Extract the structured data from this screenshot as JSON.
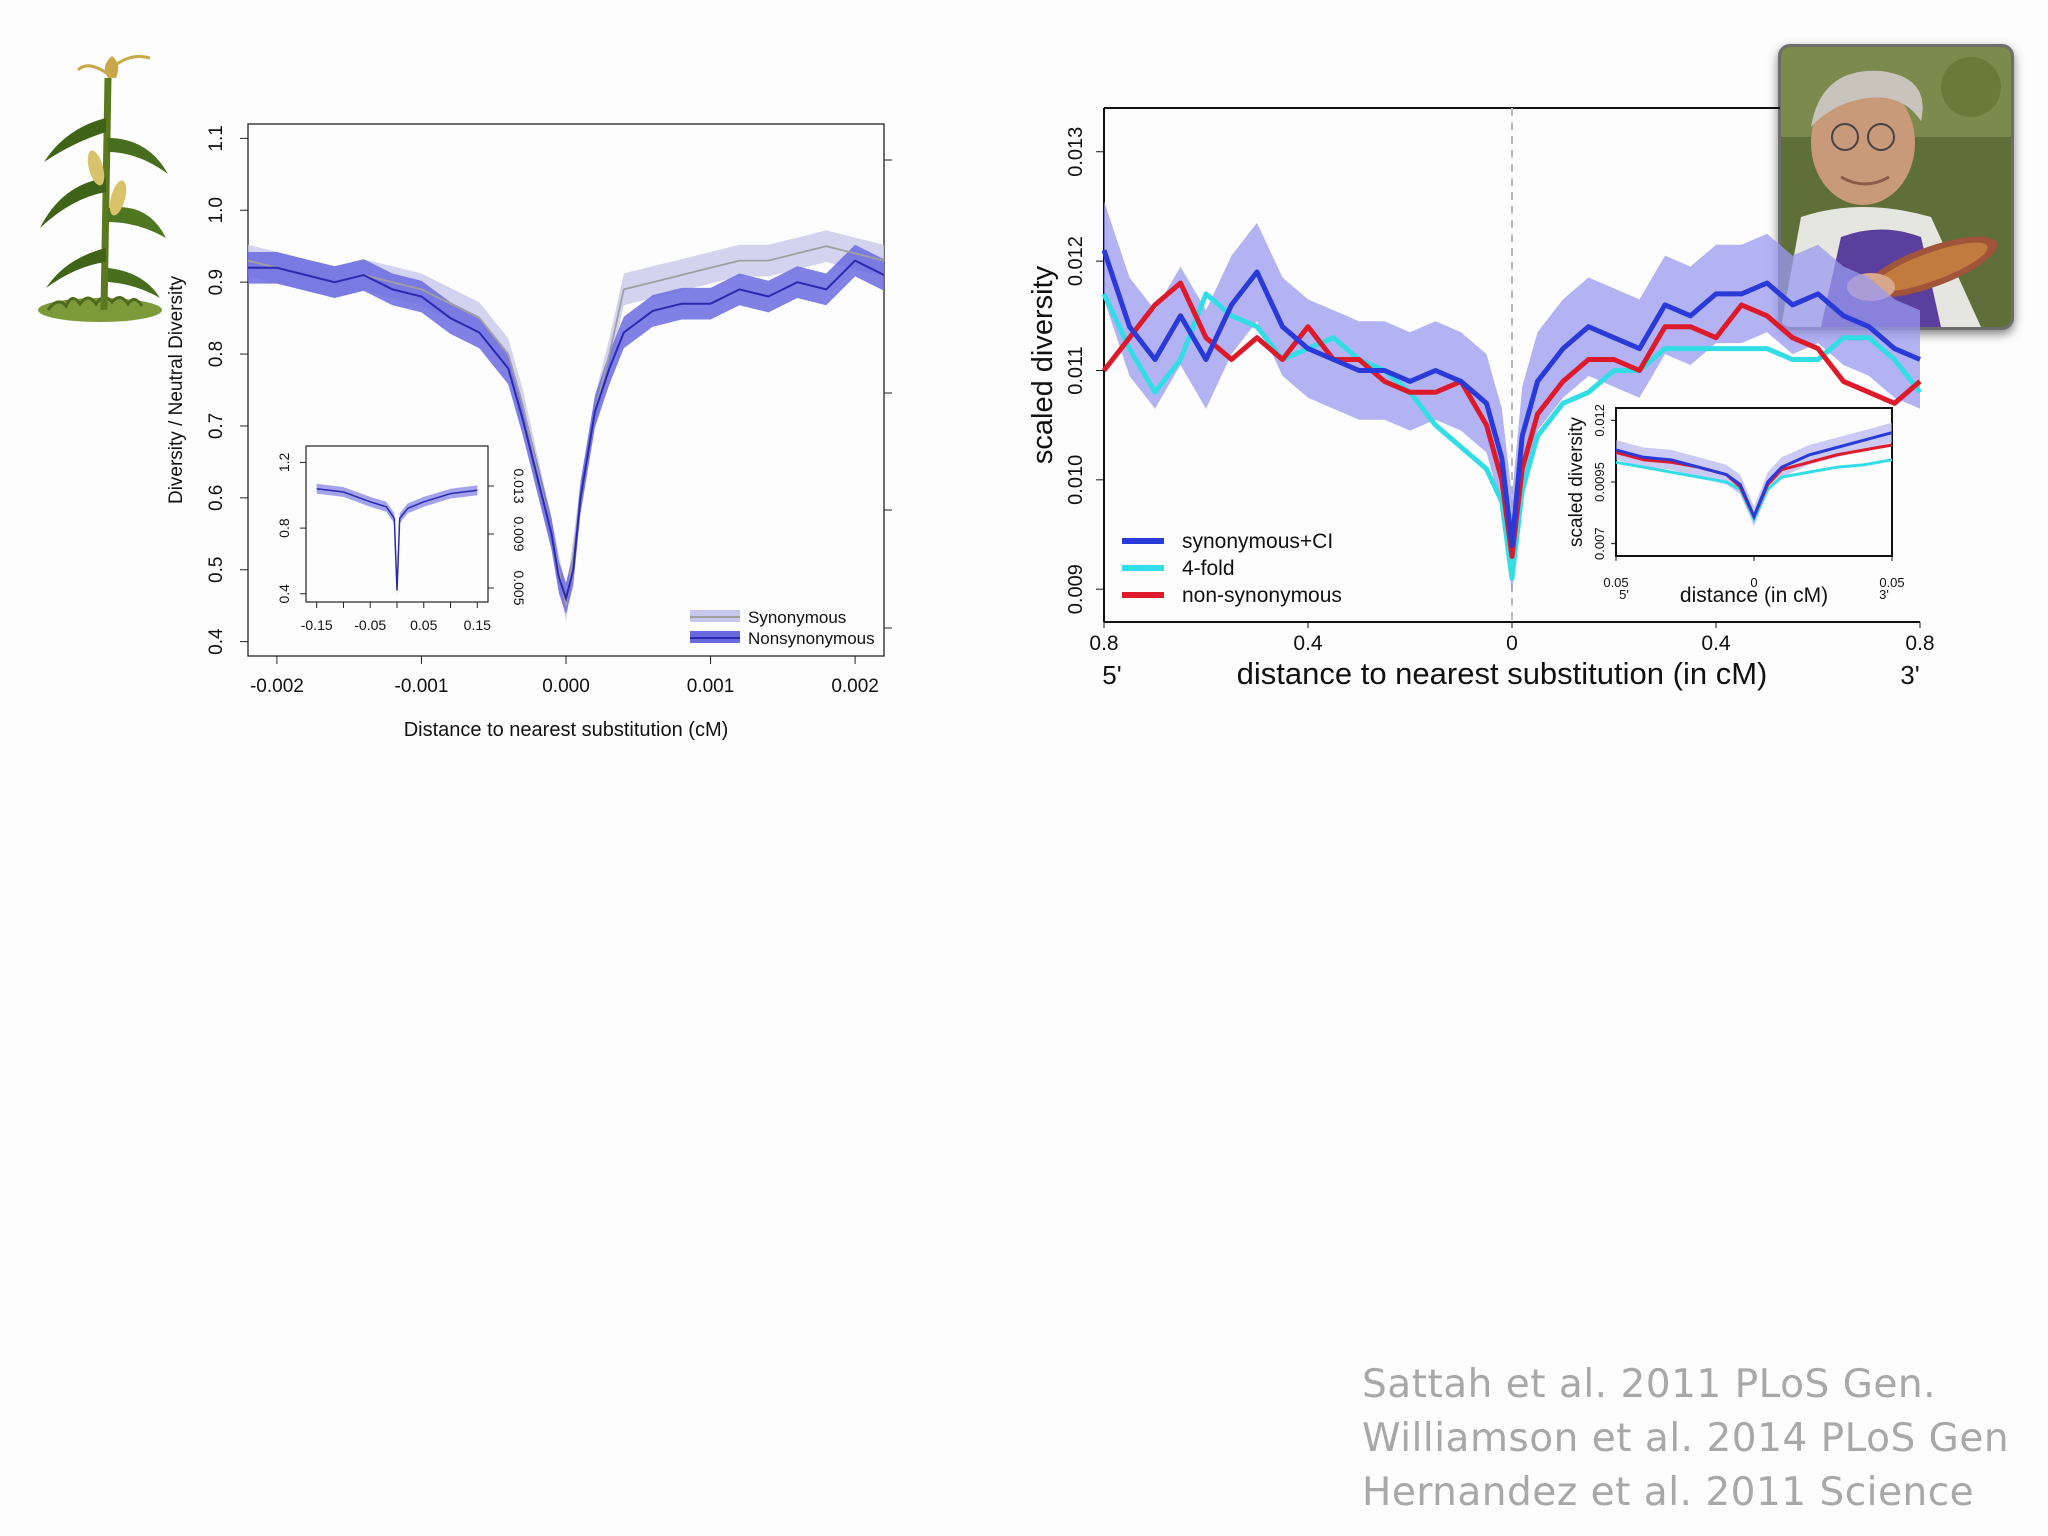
{
  "citations": [
    "Sattah et al. 2011 PLoS Gen.",
    "Williamson et al. 2014 PLoS Gen",
    "Hernandez et al. 2011 Science"
  ],
  "images": {
    "plant": "corn-plant-illustration",
    "photo": "portrait-photo-with-corn"
  },
  "chart_data": [
    {
      "type": "line",
      "xlabel": "Distance to nearest substitution (cM)",
      "ylabel": "Diversity / Neutral Diversity",
      "xlim": [
        -0.0022,
        0.0022
      ],
      "ylim": [
        0.38,
        1.12
      ],
      "x_ticks": [
        "-0.002",
        "-0.001",
        "0.000",
        "0.001",
        "0.002"
      ],
      "y_ticks": [
        "0.4",
        "0.5",
        "0.6",
        "0.7",
        "0.8",
        "0.9",
        "1.0",
        "1.1"
      ],
      "x": [
        -0.0022,
        -0.002,
        -0.0018,
        -0.0016,
        -0.0014,
        -0.0012,
        -0.001,
        -0.0008,
        -0.0006,
        -0.0004,
        -0.0003,
        -0.0002,
        -0.0001,
        -5e-05,
        0,
        5e-05,
        0.0001,
        0.0002,
        0.0003,
        0.0004,
        0.0006,
        0.0008,
        0.001,
        0.0012,
        0.0014,
        0.0016,
        0.0018,
        0.002,
        0.0022
      ],
      "series": [
        {
          "name": "Synonymous",
          "color": "#a0a0a0",
          "band": "#c8c8ec",
          "values": [
            0.93,
            0.92,
            0.91,
            0.9,
            0.91,
            0.9,
            0.89,
            0.87,
            0.85,
            0.8,
            0.73,
            0.64,
            0.55,
            0.5,
            0.45,
            0.52,
            0.6,
            0.72,
            0.8,
            0.89,
            0.9,
            0.91,
            0.92,
            0.93,
            0.93,
            0.94,
            0.95,
            0.94,
            0.93
          ]
        },
        {
          "name": "Nonsynonymous",
          "color": "#2a2ab0",
          "band": "#6a6ae0",
          "values": [
            0.92,
            0.92,
            0.91,
            0.9,
            0.91,
            0.89,
            0.88,
            0.85,
            0.83,
            0.78,
            0.71,
            0.63,
            0.55,
            0.49,
            0.46,
            0.5,
            0.6,
            0.72,
            0.78,
            0.83,
            0.86,
            0.87,
            0.87,
            0.89,
            0.88,
            0.9,
            0.89,
            0.93,
            0.91
          ]
        }
      ],
      "legend": "bottom-right",
      "inset": {
        "x_ticks": [
          "-0.15",
          "-0.05",
          "0.05",
          "0.15"
        ],
        "y_ticks_left": [
          "0.4",
          "0.8",
          "1.2"
        ],
        "y_ticks_right": [
          "0.005",
          "0.009",
          "0.013"
        ],
        "x": [
          -0.15,
          -0.1,
          -0.05,
          -0.02,
          -0.005,
          0,
          0.005,
          0.02,
          0.05,
          0.1,
          0.15
        ],
        "values": [
          1.04,
          1.02,
          0.96,
          0.93,
          0.86,
          0.42,
          0.86,
          0.92,
          0.96,
          1.01,
          1.03
        ]
      }
    },
    {
      "type": "line",
      "xlabel": "distance to nearest substitution (in cM)",
      "ylabel": "scaled diversity",
      "xlim": [
        -0.8,
        0.8
      ],
      "ylim": [
        0.0087,
        0.0134
      ],
      "x_ticks": [
        "0.8",
        "0.4",
        "0",
        "0.4",
        "0.8"
      ],
      "x_end_labels": [
        "5'",
        "3'"
      ],
      "y_ticks": [
        "0.009",
        "0.010",
        "0.011",
        "0.012",
        "0.013"
      ],
      "x": [
        -0.8,
        -0.75,
        -0.7,
        -0.65,
        -0.6,
        -0.55,
        -0.5,
        -0.45,
        -0.4,
        -0.35,
        -0.3,
        -0.25,
        -0.2,
        -0.15,
        -0.1,
        -0.05,
        -0.02,
        0,
        0.02,
        0.05,
        0.1,
        0.15,
        0.2,
        0.25,
        0.3,
        0.35,
        0.4,
        0.45,
        0.5,
        0.55,
        0.6,
        0.65,
        0.7,
        0.75,
        0.8
      ],
      "series": [
        {
          "name": "synonymous+CI",
          "color": "#2a3ad8",
          "band": "#9a9af0",
          "values": [
            0.0121,
            0.0114,
            0.0111,
            0.0115,
            0.0111,
            0.0116,
            0.0119,
            0.0114,
            0.0112,
            0.0111,
            0.011,
            0.011,
            0.0109,
            0.011,
            0.0109,
            0.0107,
            0.0102,
            0.0094,
            0.0104,
            0.0109,
            0.0112,
            0.0114,
            0.0113,
            0.0112,
            0.0116,
            0.0115,
            0.0117,
            0.0117,
            0.0118,
            0.0116,
            0.0117,
            0.0115,
            0.0114,
            0.0112,
            0.0111
          ]
        },
        {
          "name": "4-fold",
          "color": "#33dde6",
          "values": [
            0.0117,
            0.0112,
            0.0108,
            0.0111,
            0.0117,
            0.0115,
            0.0114,
            0.0111,
            0.0112,
            0.0113,
            0.0111,
            0.011,
            0.0108,
            0.0105,
            0.0103,
            0.0101,
            0.0098,
            0.0091,
            0.0099,
            0.0104,
            0.0107,
            0.0108,
            0.011,
            0.011,
            0.0112,
            0.0112,
            0.0112,
            0.0112,
            0.0112,
            0.0111,
            0.0111,
            0.0113,
            0.0113,
            0.0111,
            0.0108
          ]
        },
        {
          "name": "non-synonymous",
          "color": "#dd1a2a",
          "values": [
            0.011,
            0.0113,
            0.0116,
            0.0118,
            0.0113,
            0.0111,
            0.0113,
            0.0111,
            0.0114,
            0.0111,
            0.0111,
            0.0109,
            0.0108,
            0.0108,
            0.0109,
            0.0105,
            0.01,
            0.0093,
            0.0101,
            0.0106,
            0.0109,
            0.0111,
            0.0111,
            0.011,
            0.0114,
            0.0114,
            0.0113,
            0.0116,
            0.0115,
            0.0113,
            0.0112,
            0.0109,
            0.0108,
            0.0107,
            0.0109
          ]
        }
      ],
      "legend": "bottom-left",
      "inset": {
        "xlabel": "distance (in cM)",
        "ylabel": "scaled diversity",
        "x_ticks": [
          "0.05",
          "0",
          "0.05"
        ],
        "x_end_labels": [
          "5'",
          "3'"
        ],
        "y_ticks": [
          "0.007",
          "0.0095",
          "0.012"
        ],
        "x": [
          -0.05,
          -0.04,
          -0.03,
          -0.02,
          -0.01,
          -0.005,
          0,
          0.005,
          0.01,
          0.02,
          0.03,
          0.04,
          0.05
        ],
        "series": [
          {
            "name": "synonymous+CI",
            "values": [
              0.0108,
              0.0105,
              0.0104,
              0.0101,
              0.0098,
              0.0094,
              0.0081,
              0.0095,
              0.0101,
              0.0106,
              0.0109,
              0.0112,
              0.0115
            ]
          },
          {
            "name": "4-fold",
            "values": [
              0.0103,
              0.0101,
              0.0099,
              0.0097,
              0.0095,
              0.0092,
              0.008,
              0.0092,
              0.0097,
              0.0099,
              0.0101,
              0.0102,
              0.0104
            ]
          },
          {
            "name": "non-synonymous",
            "values": [
              0.0107,
              0.0104,
              0.0103,
              0.0101,
              0.0098,
              0.0093,
              0.0081,
              0.0094,
              0.01,
              0.0103,
              0.0106,
              0.0108,
              0.011
            ]
          }
        ]
      }
    }
  ]
}
